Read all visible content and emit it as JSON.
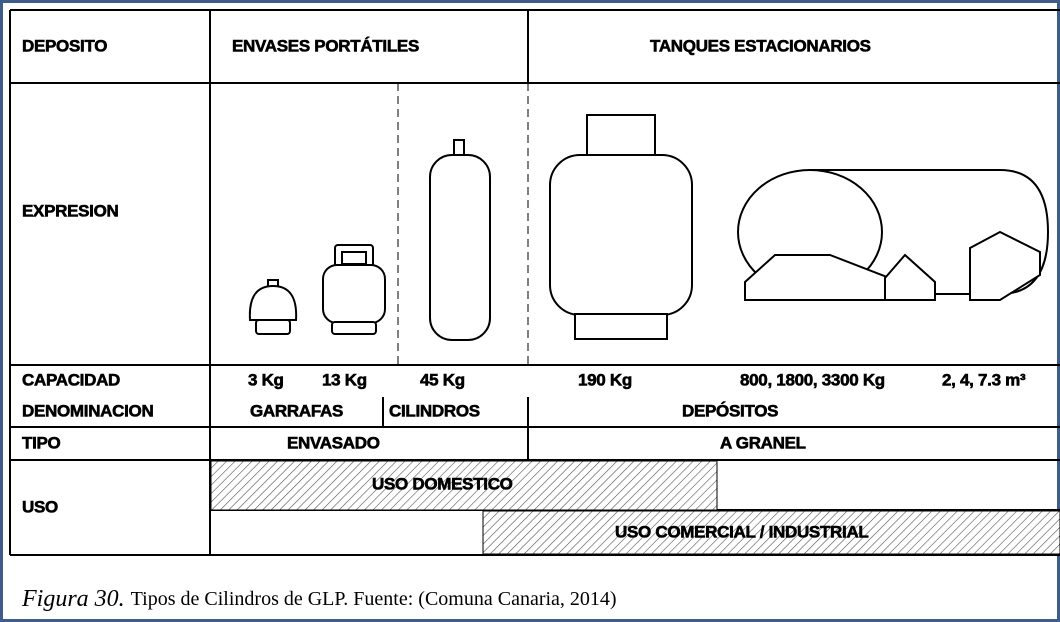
{
  "header": {
    "label": "DEPOSITO",
    "portable": "ENVASES PORTÁTILES",
    "stationary": "TANQUES ESTACIONARIOS"
  },
  "rows": {
    "expression": {
      "label": "EXPRESION"
    },
    "capacity": {
      "label": "CAPACIDAD",
      "values": [
        "3 Kg",
        "13 Kg",
        "45 Kg",
        "190 Kg",
        "800, 1800, 3300 Kg",
        "2, 4, 7.3 m³"
      ]
    },
    "denomination": {
      "label": "DENOMINACION",
      "values": [
        "GARRAFAS",
        "CILINDROS",
        "DEPÓSITOS"
      ]
    },
    "type": {
      "label": "TIPO",
      "values": [
        "ENVASADO",
        "A GRANEL"
      ]
    },
    "use": {
      "label": "USO",
      "domestic": "USO DOMESTICO",
      "commercial": "USO COMERCIAL / INDUSTRIAL"
    }
  },
  "caption": {
    "figure": "Figura 30.",
    "text": "Tipos de Cilindros de GLP. Fuente: (Comuna Canaria, 2014)"
  }
}
